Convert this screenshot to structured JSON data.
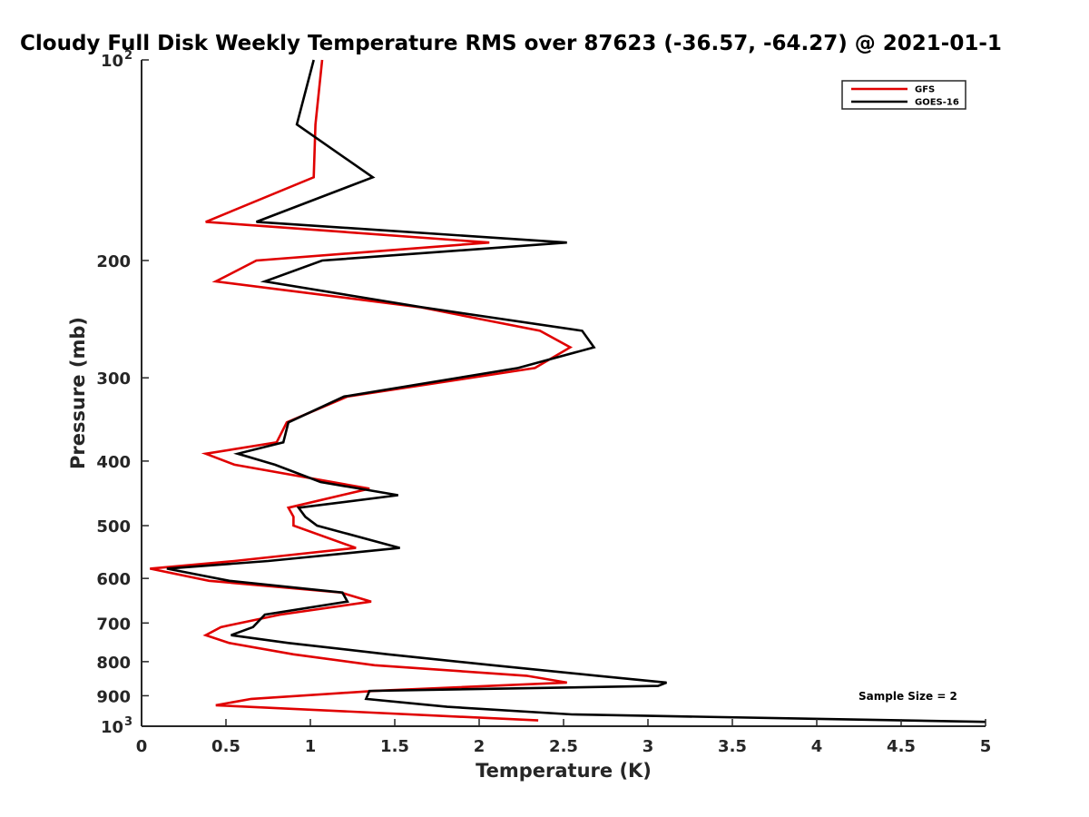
{
  "chart_data": {
    "type": "line",
    "title": "Cloudy Full Disk Weekly Temperature RMS over 87623 (-36.57, -64.27) @ 2021-01-1",
    "xlabel": "Temperature (K)",
    "ylabel": "Pressure (mb)",
    "xlim": [
      0,
      5
    ],
    "ylim": [
      100,
      1000
    ],
    "y_scale": "log",
    "y_reversed": true,
    "xticks": [
      "0",
      "0.5",
      "1",
      "1.5",
      "2",
      "2.5",
      "3",
      "3.5",
      "4",
      "4.5",
      "5"
    ],
    "yticks": [
      {
        "value": 100,
        "label": "10",
        "sup": "2"
      },
      {
        "value": 200,
        "label": "200"
      },
      {
        "value": 300,
        "label": "300"
      },
      {
        "value": 400,
        "label": "400"
      },
      {
        "value": 500,
        "label": "500"
      },
      {
        "value": 600,
        "label": "600"
      },
      {
        "value": 700,
        "label": "700"
      },
      {
        "value": 800,
        "label": "800"
      },
      {
        "value": 900,
        "label": "900"
      },
      {
        "value": 1000,
        "label": "10",
        "sup": "3"
      }
    ],
    "grid": false,
    "legend_position": "top-right",
    "annotation": "Sample Size = 2",
    "series": [
      {
        "name": "GFS",
        "color": "#e00000",
        "points": [
          [
            1.07,
            100
          ],
          [
            1.03,
            125
          ],
          [
            1.02,
            150
          ],
          [
            0.38,
            175
          ],
          [
            2.06,
            188
          ],
          [
            0.68,
            200
          ],
          [
            0.44,
            215
          ],
          [
            1.65,
            235
          ],
          [
            2.36,
            255
          ],
          [
            2.54,
            270
          ],
          [
            2.33,
            290
          ],
          [
            1.22,
            320
          ],
          [
            0.86,
            350
          ],
          [
            0.8,
            375
          ],
          [
            0.38,
            390
          ],
          [
            0.55,
            405
          ],
          [
            1.35,
            440
          ],
          [
            0.87,
            470
          ],
          [
            0.9,
            485
          ],
          [
            0.9,
            500
          ],
          [
            1.27,
            540
          ],
          [
            0.55,
            565
          ],
          [
            0.05,
            580
          ],
          [
            0.4,
            605
          ],
          [
            1.18,
            630
          ],
          [
            1.36,
            650
          ],
          [
            0.82,
            680
          ],
          [
            0.47,
            710
          ],
          [
            0.38,
            730
          ],
          [
            0.52,
            750
          ],
          [
            0.9,
            780
          ],
          [
            1.38,
            810
          ],
          [
            2.28,
            840
          ],
          [
            2.52,
            860
          ],
          [
            1.38,
            885
          ],
          [
            0.65,
            910
          ],
          [
            0.44,
            930
          ],
          [
            2.35,
            980
          ]
        ]
      },
      {
        "name": "GOES-16",
        "color": "#000000",
        "points": [
          [
            1.02,
            100
          ],
          [
            0.92,
            125
          ],
          [
            1.37,
            150
          ],
          [
            0.68,
            175
          ],
          [
            2.52,
            188
          ],
          [
            1.07,
            200
          ],
          [
            0.73,
            215
          ],
          [
            1.66,
            235
          ],
          [
            2.61,
            255
          ],
          [
            2.68,
            270
          ],
          [
            2.23,
            290
          ],
          [
            1.2,
            320
          ],
          [
            0.87,
            350
          ],
          [
            0.84,
            375
          ],
          [
            0.57,
            390
          ],
          [
            0.79,
            405
          ],
          [
            1.06,
            430
          ],
          [
            1.52,
            450
          ],
          [
            0.93,
            470
          ],
          [
            0.97,
            485
          ],
          [
            1.04,
            500
          ],
          [
            1.53,
            540
          ],
          [
            0.75,
            565
          ],
          [
            0.15,
            580
          ],
          [
            0.52,
            605
          ],
          [
            1.19,
            630
          ],
          [
            1.22,
            650
          ],
          [
            0.73,
            680
          ],
          [
            0.66,
            710
          ],
          [
            0.53,
            730
          ],
          [
            0.87,
            750
          ],
          [
            1.46,
            780
          ],
          [
            2.08,
            810
          ],
          [
            2.7,
            840
          ],
          [
            3.11,
            860
          ],
          [
            3.06,
            870
          ],
          [
            1.35,
            885
          ],
          [
            1.33,
            910
          ],
          [
            1.81,
            935
          ],
          [
            2.55,
            960
          ],
          [
            5.0,
            985
          ]
        ]
      }
    ]
  }
}
